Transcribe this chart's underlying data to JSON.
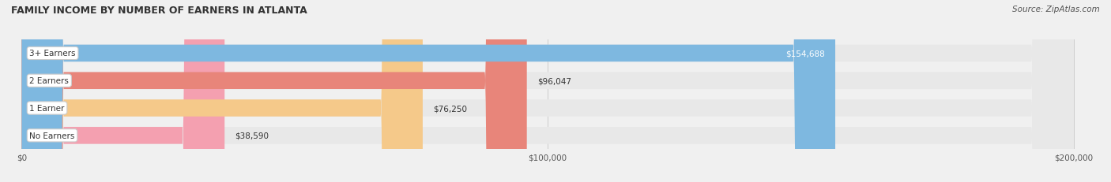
{
  "title": "FAMILY INCOME BY NUMBER OF EARNERS IN ATLANTA",
  "source": "Source: ZipAtlas.com",
  "categories": [
    "No Earners",
    "1 Earner",
    "2 Earners",
    "3+ Earners"
  ],
  "values": [
    38590,
    76250,
    96047,
    154688
  ],
  "bar_colors": [
    "#f4a0b0",
    "#f5c98a",
    "#e8857a",
    "#7eb8e0"
  ],
  "label_colors": [
    "#333333",
    "#333333",
    "#333333",
    "#ffffff"
  ],
  "x_max": 200000,
  "x_ticks": [
    0,
    100000,
    200000
  ],
  "x_tick_labels": [
    "$0",
    "$100,000",
    "$200,000"
  ],
  "background_color": "#f0f0f0",
  "bar_background_color": "#e8e8e8",
  "bar_height": 0.62,
  "figsize": [
    14.06,
    2.32
  ],
  "dpi": 100
}
